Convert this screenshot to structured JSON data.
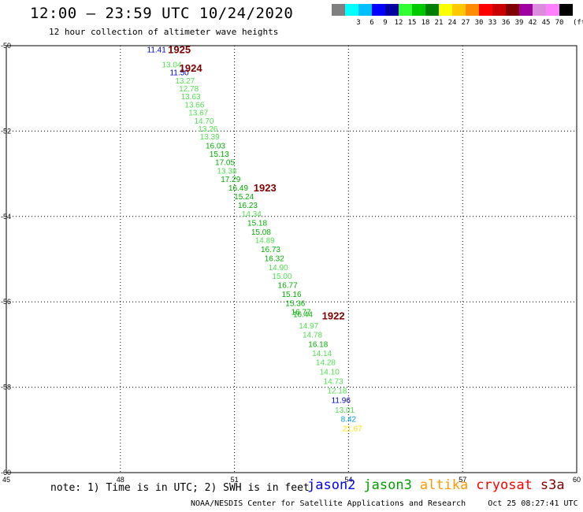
{
  "header": {
    "title": "12:00 – 23:59 UTC 10/24/2020",
    "subtitle": "12 hour collection of altimeter wave heights"
  },
  "legend": {
    "unit": "(ft)",
    "swatches": [
      {
        "color": "#808080",
        "label": ""
      },
      {
        "color": "#00ffff",
        "label": "3"
      },
      {
        "color": "#00bfff",
        "label": "6"
      },
      {
        "color": "#0000ff",
        "label": "9"
      },
      {
        "color": "#0000a0",
        "label": "12"
      },
      {
        "color": "#32ff32",
        "label": "15"
      },
      {
        "color": "#00c800",
        "label": "18"
      },
      {
        "color": "#008000",
        "label": "21"
      },
      {
        "color": "#ffff00",
        "label": "24"
      },
      {
        "color": "#ffc800",
        "label": "27"
      },
      {
        "color": "#ff8c00",
        "label": "30"
      },
      {
        "color": "#ff0000",
        "label": "33"
      },
      {
        "color": "#c80000",
        "label": "36"
      },
      {
        "color": "#800000",
        "label": "39"
      },
      {
        "color": "#a000a0",
        "label": "42"
      },
      {
        "color": "#dc8cdc",
        "label": "45"
      },
      {
        "color": "#ff80ff",
        "label": "70"
      },
      {
        "color": "#000000",
        "label": ""
      }
    ]
  },
  "chart_data": {
    "type": "scatter",
    "xlim": [
      45,
      60
    ],
    "ylim": [
      -60,
      -50
    ],
    "x_ticks": [
      "45",
      "48",
      "51",
      "54",
      "57",
      "60"
    ],
    "y_ticks": [
      "-50",
      "-52",
      "-54",
      "-56",
      "-58",
      "-60"
    ],
    "grid": true,
    "points": [
      {
        "x": 48.95,
        "y": -50.08,
        "label": "11.41",
        "color": "#0000c0"
      },
      {
        "x": 49.35,
        "y": -50.43,
        "label": "13.04",
        "color": "#50e050"
      },
      {
        "x": 49.55,
        "y": -50.62,
        "label": "11.50",
        "color": "#0000c0"
      },
      {
        "x": 49.7,
        "y": -50.81,
        "label": "13.27",
        "color": "#50e050"
      },
      {
        "x": 49.8,
        "y": -51.0,
        "label": "12.78",
        "color": "#50e050"
      },
      {
        "x": 49.85,
        "y": -51.18,
        "label": "13.63",
        "color": "#50e050"
      },
      {
        "x": 49.95,
        "y": -51.37,
        "label": "13.66",
        "color": "#50e050"
      },
      {
        "x": 50.05,
        "y": -51.56,
        "label": "13.67",
        "color": "#50e050"
      },
      {
        "x": 50.2,
        "y": -51.75,
        "label": "14.70",
        "color": "#50e050"
      },
      {
        "x": 50.3,
        "y": -51.94,
        "label": "13.26",
        "color": "#50e050"
      },
      {
        "x": 50.35,
        "y": -52.12,
        "label": "13.39",
        "color": "#50e050"
      },
      {
        "x": 50.5,
        "y": -52.33,
        "label": "16.03",
        "color": "#00b000"
      },
      {
        "x": 50.6,
        "y": -52.53,
        "label": "15.13",
        "color": "#00b000"
      },
      {
        "x": 50.75,
        "y": -52.72,
        "label": "17.05",
        "color": "#00b000"
      },
      {
        "x": 50.8,
        "y": -52.92,
        "label": "13.38",
        "color": "#50e050"
      },
      {
        "x": 50.9,
        "y": -53.12,
        "label": "17.29",
        "color": "#00b000"
      },
      {
        "x": 51.1,
        "y": -53.32,
        "label": "16.49",
        "color": "#00b000"
      },
      {
        "x": 51.25,
        "y": -53.52,
        "label": "15.24",
        "color": "#00b000"
      },
      {
        "x": 51.35,
        "y": -53.73,
        "label": "16.23",
        "color": "#00b000"
      },
      {
        "x": 51.45,
        "y": -53.93,
        "label": "14.34",
        "color": "#50e050"
      },
      {
        "x": 51.6,
        "y": -54.14,
        "label": "15.18",
        "color": "#00b000"
      },
      {
        "x": 51.7,
        "y": -54.35,
        "label": "15.08",
        "color": "#00b000"
      },
      {
        "x": 51.8,
        "y": -54.55,
        "label": "14.89",
        "color": "#50e050"
      },
      {
        "x": 51.95,
        "y": -54.76,
        "label": "16.73",
        "color": "#00b000"
      },
      {
        "x": 52.05,
        "y": -54.97,
        "label": "16.32",
        "color": "#00b000"
      },
      {
        "x": 52.15,
        "y": -55.18,
        "label": "14.90",
        "color": "#50e050"
      },
      {
        "x": 52.25,
        "y": -55.39,
        "label": "15.00",
        "color": "#50e050"
      },
      {
        "x": 52.4,
        "y": -55.6,
        "label": "16.77",
        "color": "#00b000"
      },
      {
        "x": 52.5,
        "y": -55.81,
        "label": "15.16",
        "color": "#00b000"
      },
      {
        "x": 52.6,
        "y": -56.02,
        "label": "15.36",
        "color": "#00b000"
      },
      {
        "x": 52.75,
        "y": -56.23,
        "label": "16.77",
        "color": "#00b000"
      },
      {
        "x": 52.8,
        "y": -56.28,
        "label": "16.44",
        "color": "#00b000"
      },
      {
        "x": 52.95,
        "y": -56.55,
        "label": "14.97",
        "color": "#50e050"
      },
      {
        "x": 53.05,
        "y": -56.76,
        "label": "14.78",
        "color": "#50e050"
      },
      {
        "x": 53.2,
        "y": -56.98,
        "label": "16.18",
        "color": "#00b000"
      },
      {
        "x": 53.3,
        "y": -57.2,
        "label": "14.14",
        "color": "#50e050"
      },
      {
        "x": 53.4,
        "y": -57.41,
        "label": "14.28",
        "color": "#50e050"
      },
      {
        "x": 53.5,
        "y": -57.63,
        "label": "14.10",
        "color": "#50e050"
      },
      {
        "x": 53.6,
        "y": -57.85,
        "label": "14.73",
        "color": "#50e050"
      },
      {
        "x": 53.7,
        "y": -58.07,
        "label": "12.18",
        "color": "#50e050"
      },
      {
        "x": 53.8,
        "y": -58.29,
        "label": "11.96",
        "color": "#0000c0"
      },
      {
        "x": 53.9,
        "y": -58.52,
        "label": "13.01",
        "color": "#50e050"
      },
      {
        "x": 54.0,
        "y": -58.74,
        "label": "8.42",
        "color": "#00a0e0"
      },
      {
        "x": 54.1,
        "y": -58.96,
        "label": "21.67",
        "color": "#ffe000"
      }
    ],
    "time_labels": [
      {
        "x": 49.55,
        "y": -50.08,
        "label": "1925"
      },
      {
        "x": 49.85,
        "y": -50.52,
        "label": "1924"
      },
      {
        "x": 51.8,
        "y": -53.32,
        "label": "1923"
      },
      {
        "x": 53.6,
        "y": -56.32,
        "label": "1922"
      }
    ],
    "time_label_color": "#800000"
  },
  "note": "note: 1) Time is in UTC; 2) SWH is in feet",
  "satellites": [
    {
      "name": "jason2",
      "color": "#0000ff"
    },
    {
      "name": "jason3",
      "color": "#00a000"
    },
    {
      "name": "altika",
      "color": "#ff9900"
    },
    {
      "name": "cryosat",
      "color": "#ff0000"
    },
    {
      "name": "s3a",
      "color": "#800000"
    }
  ],
  "footer": {
    "credit": "NOAA/NESDIS Center for Satellite Applications and Research",
    "timestamp": "Oct 25 08:27:41 UTC 2020"
  }
}
